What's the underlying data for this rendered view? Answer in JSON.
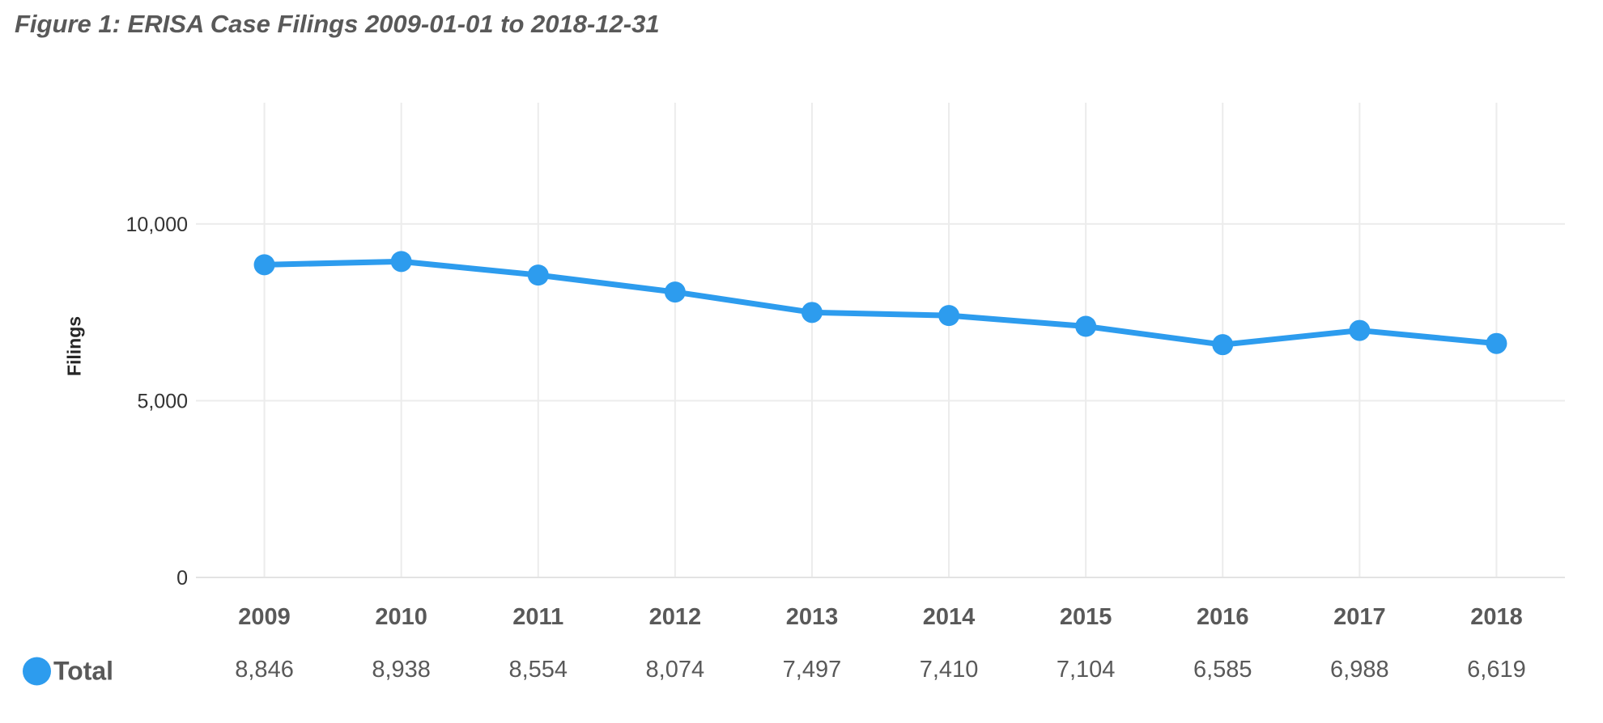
{
  "title": "Figure 1: ERISA Case Filings 2009-01-01 to 2018-12-31",
  "chart_data": {
    "type": "line",
    "title": "Figure 1: ERISA Case Filings 2009-01-01 to 2018-12-31",
    "xlabel": "",
    "ylabel": "Filings",
    "categories": [
      "2009",
      "2010",
      "2011",
      "2012",
      "2013",
      "2014",
      "2015",
      "2016",
      "2017",
      "2018"
    ],
    "series": [
      {
        "name": "Total",
        "values": [
          8846,
          8938,
          8554,
          8074,
          7497,
          7410,
          7104,
          6585,
          6988,
          6619
        ],
        "values_display": [
          "8,846",
          "8,938",
          "8,554",
          "8,074",
          "7,497",
          "7,410",
          "7,104",
          "6,585",
          "6,988",
          "6,619"
        ]
      }
    ],
    "yticks": [
      {
        "value": 0,
        "label": "0"
      },
      {
        "value": 5000,
        "label": "5,000"
      },
      {
        "value": 10000,
        "label": "10,000"
      }
    ],
    "ylim": [
      0,
      13430
    ],
    "grid": true,
    "legend_position": "bottom-left",
    "marker": "circle"
  },
  "colors": {
    "line": "#2d9cee",
    "gridline": "#ececec",
    "axis_line": "#e3e3e3",
    "tick_text": "#333333",
    "category_text": "#595959",
    "value_text": "#595959",
    "title_text": "#595959",
    "axis_title_text": "#262626"
  }
}
